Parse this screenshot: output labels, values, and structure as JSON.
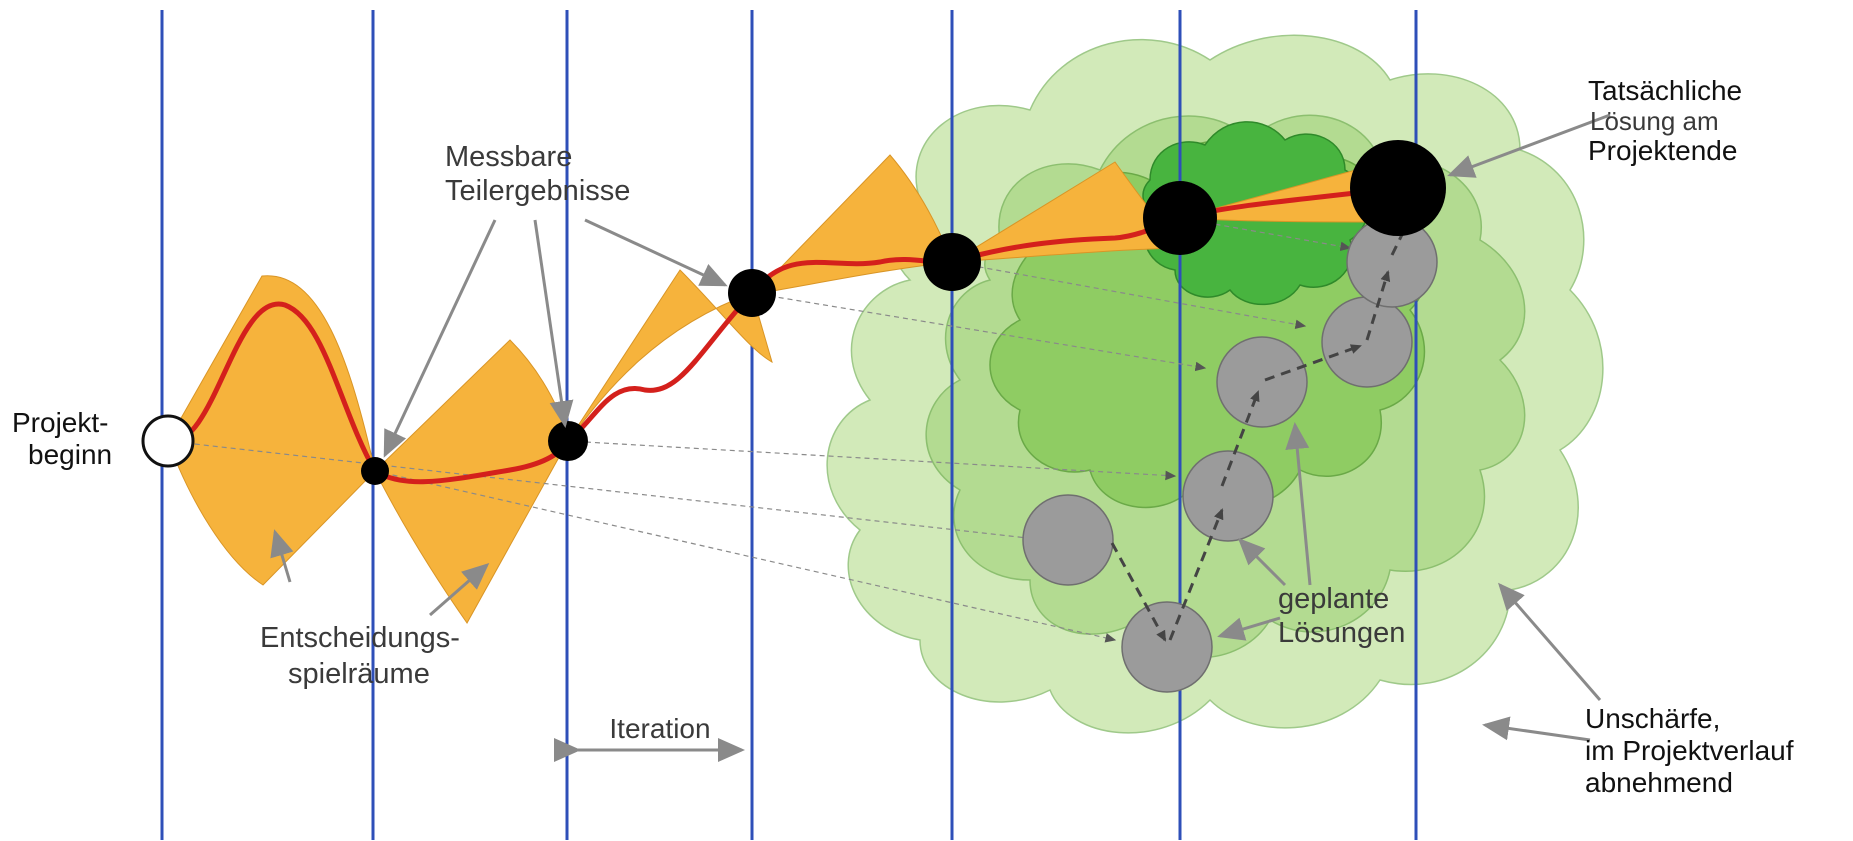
{
  "labels": {
    "projekt_beginn": [
      "Projekt-",
      "beginn"
    ],
    "messbare_teilergebnisse": [
      "Messbare",
      "Teilergebnisse"
    ],
    "entscheidungsspielraeume": [
      "Entscheidungs-",
      "spielräume"
    ],
    "iteration": "Iteration",
    "geplante_loesungen": [
      "geplante",
      "Lösungen"
    ],
    "tatsaechliche_loesung": [
      "Tatsächliche",
      "Lösung am",
      "Projektende"
    ],
    "unschaerfe": [
      "Unschärfe,",
      "im Projektverlauf",
      "abnehmend"
    ]
  },
  "colors": {
    "iteration_line": "#2e4fb8",
    "decision_space": "#f6b33c",
    "actual_path": "#d4201c",
    "uncertainty_1": "#d2eab9",
    "uncertainty_2": "#b3db91",
    "uncertainty_3": "#8fcc63",
    "uncertainty_4": "#48b43f",
    "planned_solution": "#9b9b9b",
    "arrow": "#8a8a8a"
  }
}
